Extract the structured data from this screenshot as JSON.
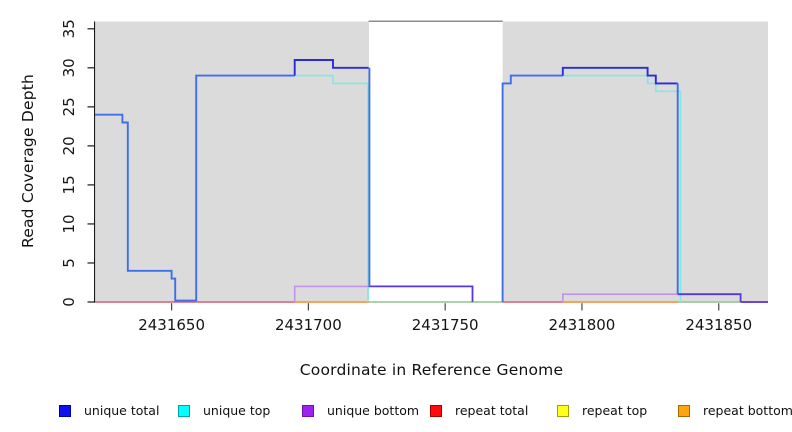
{
  "chart_data": {
    "type": "line",
    "subtype": "step-coverage",
    "title": "",
    "xlabel": "Coordinate in Reference Genome",
    "ylabel": "Read Coverage Depth",
    "x_ticks": [
      "2431650",
      "2431700",
      "2431750",
      "2431800",
      "2431850"
    ],
    "x_tick_values": [
      2431650,
      2431700,
      2431750,
      2431800,
      2431850
    ],
    "y_ticks": [
      "0",
      "5",
      "10",
      "15",
      "20",
      "25",
      "30",
      "35"
    ],
    "y_tick_values": [
      0,
      5,
      10,
      15,
      20,
      25,
      30,
      35
    ],
    "x_range": [
      2431622,
      2431868
    ],
    "y_range": [
      0,
      36
    ],
    "grid": false,
    "legend_position": "bottom",
    "mask_region": {
      "start": 2431722,
      "end": 2431771,
      "note": "white unmapped gap in gray panel"
    },
    "series": {
      "unique_total": [
        [
          2431622,
          2431632,
          24
        ],
        [
          2431632,
          2431634,
          23
        ],
        [
          2431634,
          2431650,
          4
        ],
        [
          2431650,
          2431651,
          3
        ],
        [
          2431651,
          2431659,
          0
        ],
        [
          2431659,
          2431695,
          29
        ],
        [
          2431695,
          2431709,
          31
        ],
        [
          2431709,
          2431722,
          30
        ],
        [
          2431722,
          2431760,
          2
        ],
        [
          2431760,
          2431771,
          0
        ],
        [
          2431771,
          2431774,
          28
        ],
        [
          2431774,
          2431793,
          29
        ],
        [
          2431793,
          2431824,
          30
        ],
        [
          2431824,
          2431827,
          29
        ],
        [
          2431827,
          2431835,
          28
        ],
        [
          2431835,
          2431858,
          1
        ],
        [
          2431858,
          2431868,
          0
        ]
      ],
      "unique_top": [
        [
          2431622,
          2431632,
          24
        ],
        [
          2431632,
          2431634,
          23
        ],
        [
          2431634,
          2431650,
          4
        ],
        [
          2431650,
          2431651,
          3
        ],
        [
          2431651,
          2431659,
          0
        ],
        [
          2431659,
          2431709,
          29
        ],
        [
          2431709,
          2431722,
          28
        ],
        [
          2431722,
          2431771,
          0
        ],
        [
          2431771,
          2431774,
          28
        ],
        [
          2431774,
          2431824,
          29
        ],
        [
          2431824,
          2431827,
          28
        ],
        [
          2431827,
          2431836,
          27
        ],
        [
          2431836,
          2431868,
          0
        ]
      ],
      "unique_bottom": [
        [
          2431622,
          2431695,
          0
        ],
        [
          2431695,
          2431760,
          2
        ],
        [
          2431760,
          2431793,
          0
        ],
        [
          2431793,
          2431858,
          1
        ],
        [
          2431858,
          2431868,
          0
        ]
      ],
      "repeat_total": [
        [
          2431622,
          2431868,
          0
        ]
      ],
      "repeat_top": [
        [
          2431622,
          2431868,
          0
        ]
      ],
      "repeat_bottom": [
        [
          2431622,
          2431868,
          0
        ]
      ]
    },
    "palette": {
      "panel": "#DBDBDB",
      "bright_blue": "#3E6FE8",
      "navy": "#2B2BD9",
      "violet_blue": "#5538E4",
      "cyan_line": "#7FE9E4",
      "plum": "#C293E8",
      "pink_red": "#E0607A",
      "orange_line": "#FFA33C",
      "pale_green": "#93DFA5",
      "mask_border": "#8E8E8E",
      "axis": "#1A1A1A",
      "tick": "#4A4A4A",
      "text": "#141414"
    },
    "visible_paths": [
      {
        "stroke": "pink_red",
        "w": 1.5,
        "pts": [
          [
            2431622,
            0
          ],
          [
            2431868,
            0
          ]
        ]
      },
      {
        "stroke": "orange_line",
        "w": 1.6,
        "pts": [
          [
            2431695,
            0
          ],
          [
            2431722,
            0
          ]
        ]
      },
      {
        "stroke": "orange_line",
        "w": 1.6,
        "pts": [
          [
            2431793,
            0
          ],
          [
            2431835,
            0
          ]
        ]
      },
      {
        "stroke": "pale_green",
        "w": 1.6,
        "pts": [
          [
            2431722,
            0
          ],
          [
            2431771,
            0
          ]
        ]
      },
      {
        "stroke": "pale_green",
        "w": 1.6,
        "pts": [
          [
            2431835,
            0
          ],
          [
            2431858,
            0
          ]
        ]
      },
      {
        "stroke": "violet_blue",
        "w": 1.7,
        "pts": [
          [
            2431858,
            0
          ],
          [
            2431868,
            0
          ]
        ]
      },
      {
        "stroke": "cyan_line",
        "w": 1.6,
        "pts": [
          [
            2431695,
            29
          ],
          [
            2431709,
            29
          ],
          [
            2431709,
            28
          ],
          [
            2431721.8,
            28
          ],
          [
            2431721.8,
            0
          ]
        ]
      },
      {
        "stroke": "cyan_line",
        "w": 1.6,
        "pts": [
          [
            2431793,
            29
          ],
          [
            2431824,
            29
          ],
          [
            2431824,
            28
          ],
          [
            2431827,
            28
          ],
          [
            2431827,
            27
          ],
          [
            2431836,
            27
          ],
          [
            2431836,
            0
          ]
        ]
      },
      {
        "stroke": "plum",
        "w": 1.6,
        "pts": [
          [
            2431695,
            0
          ],
          [
            2431695,
            2
          ],
          [
            2431722,
            2
          ]
        ]
      },
      {
        "stroke": "plum",
        "w": 1.6,
        "pts": [
          [
            2431793,
            0
          ],
          [
            2431793,
            1
          ],
          [
            2431835,
            1
          ]
        ]
      },
      {
        "stroke": "violet_blue",
        "w": 1.8,
        "pts": [
          [
            2431722,
            2
          ],
          [
            2431760,
            2
          ],
          [
            2431760,
            0
          ]
        ]
      },
      {
        "stroke": "violet_blue",
        "w": 1.8,
        "pts": [
          [
            2431835,
            1
          ],
          [
            2431858,
            1
          ],
          [
            2431858,
            0
          ]
        ]
      },
      {
        "stroke": "bright_blue",
        "w": 1.9,
        "pts": [
          [
            2431622,
            24
          ],
          [
            2431632,
            24
          ],
          [
            2431632,
            23
          ],
          [
            2431634,
            23
          ],
          [
            2431634,
            4
          ],
          [
            2431650,
            4
          ],
          [
            2431650,
            3
          ],
          [
            2431651.3,
            3
          ],
          [
            2431651.3,
            0.18
          ],
          [
            2431659,
            0.18
          ],
          [
            2431659,
            29
          ],
          [
            2431695,
            29
          ]
        ]
      },
      {
        "stroke": "navy",
        "w": 1.9,
        "pts": [
          [
            2431695,
            29
          ],
          [
            2431695,
            31
          ],
          [
            2431709,
            31
          ],
          [
            2431709,
            30
          ],
          [
            2431722,
            30
          ]
        ]
      },
      {
        "stroke": "bright_blue",
        "w": 1.9,
        "pts": [
          [
            2431722.3,
            30
          ],
          [
            2431722.3,
            2
          ]
        ]
      },
      {
        "stroke": "bright_blue",
        "w": 1.9,
        "pts": [
          [
            2431771,
            0
          ],
          [
            2431771,
            28
          ],
          [
            2431774,
            28
          ],
          [
            2431774,
            29
          ],
          [
            2431793,
            29
          ]
        ]
      },
      {
        "stroke": "navy",
        "w": 1.9,
        "pts": [
          [
            2431793,
            29
          ],
          [
            2431793,
            30
          ],
          [
            2431824,
            30
          ],
          [
            2431824,
            29
          ],
          [
            2431827,
            29
          ],
          [
            2431827,
            28
          ],
          [
            2431835,
            28
          ]
        ]
      },
      {
        "stroke": "bright_blue",
        "w": 1.9,
        "pts": [
          [
            2431835,
            28
          ],
          [
            2431835,
            1
          ]
        ]
      }
    ]
  },
  "legend": {
    "items": [
      {
        "label": "unique total",
        "fill": "#1010EE",
        "border": "#0000A0"
      },
      {
        "label": "unique top",
        "fill": "#00FFFF",
        "border": "#00A3A3"
      },
      {
        "label": "unique bottom",
        "fill": "#A020F0",
        "border": "#6A14A8"
      },
      {
        "label": "repeat total",
        "fill": "#FF0D0D",
        "border": "#A30000"
      },
      {
        "label": "repeat top",
        "fill": "#FFFF1A",
        "border": "#A3A300"
      },
      {
        "label": "repeat bottom",
        "fill": "#FFA510",
        "border": "#A36A00"
      }
    ]
  }
}
